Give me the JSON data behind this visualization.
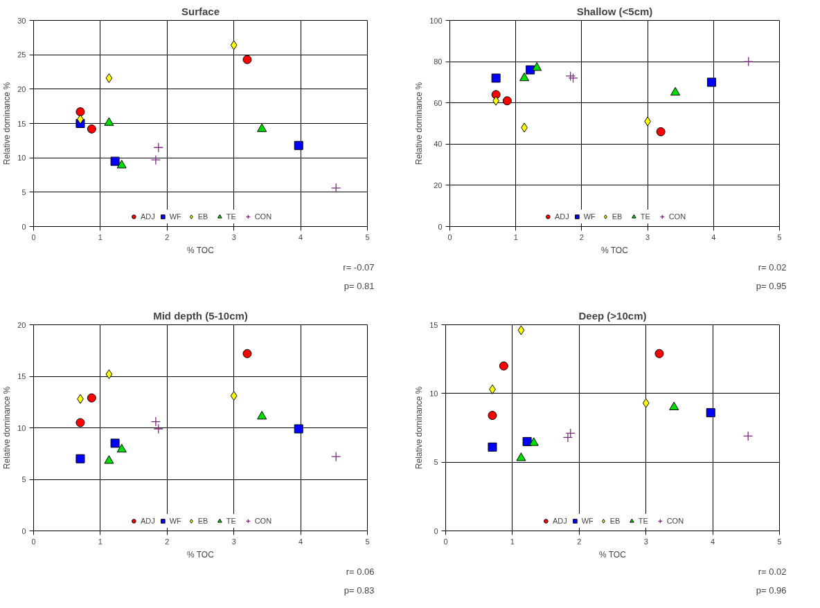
{
  "chart_data": [
    {
      "type": "scatter",
      "title": "Surface",
      "xlabel": "% TOC",
      "ylabel": "Relative dominance %",
      "xlim": [
        0,
        5
      ],
      "xticks": [
        0,
        1,
        2,
        3,
        4,
        5
      ],
      "ylim": [
        0,
        30
      ],
      "yticks": [
        0,
        5,
        10,
        15,
        20,
        25,
        30
      ],
      "grid": true,
      "legend": "bottom",
      "annotations": [
        "r= -0.07",
        "p= 0.81"
      ],
      "series": [
        {
          "name": "ADJ",
          "color": "#ff0000",
          "marker": "circle",
          "x": [
            0.7,
            0.87,
            3.2
          ],
          "values": [
            16.7,
            14.2,
            24.3
          ]
        },
        {
          "name": "WF",
          "color": "#0000ff",
          "marker": "square",
          "x": [
            0.7,
            1.22,
            3.97
          ],
          "values": [
            15.0,
            9.5,
            11.8
          ]
        },
        {
          "name": "EB",
          "color": "#ffff00",
          "marker": "diamond",
          "x": [
            0.7,
            1.13,
            3.0
          ],
          "values": [
            15.6,
            21.6,
            26.4
          ]
        },
        {
          "name": "TE",
          "color": "#00dd00",
          "marker": "triangle",
          "x": [
            1.13,
            1.32,
            3.42
          ],
          "values": [
            15.1,
            8.9,
            14.2
          ]
        },
        {
          "name": "CON",
          "color": "#7f2a7f",
          "marker": "cross",
          "x": [
            1.83,
            1.87,
            4.53
          ],
          "values": [
            9.7,
            11.5,
            5.6
          ]
        }
      ]
    },
    {
      "type": "scatter",
      "title": "Shallow (<5cm)",
      "xlabel": "% TOC",
      "ylabel": "Relative dominance %",
      "xlim": [
        0,
        5
      ],
      "xticks": [
        0,
        1,
        2,
        3,
        4,
        5
      ],
      "ylim": [
        0,
        100
      ],
      "yticks": [
        0,
        20,
        40,
        60,
        80,
        100
      ],
      "grid": true,
      "legend": "bottom",
      "annotations": [
        "r= 0.02",
        "p= 0.95"
      ],
      "series": [
        {
          "name": "ADJ",
          "color": "#ff0000",
          "marker": "circle",
          "x": [
            0.7,
            0.87,
            3.2
          ],
          "values": [
            64,
            61,
            46
          ]
        },
        {
          "name": "WF",
          "color": "#0000ff",
          "marker": "square",
          "x": [
            0.7,
            1.22,
            3.97
          ],
          "values": [
            72,
            76,
            70
          ]
        },
        {
          "name": "EB",
          "color": "#ffff00",
          "marker": "diamond",
          "x": [
            0.7,
            1.13,
            3.0
          ],
          "values": [
            61,
            48,
            51
          ]
        },
        {
          "name": "TE",
          "color": "#00dd00",
          "marker": "triangle",
          "x": [
            1.13,
            1.32,
            3.42
          ],
          "values": [
            72,
            77,
            65
          ]
        },
        {
          "name": "CON",
          "color": "#7f2a7f",
          "marker": "cross",
          "x": [
            1.83,
            1.87,
            4.53
          ],
          "values": [
            73,
            72,
            80
          ]
        }
      ]
    },
    {
      "type": "scatter",
      "title": "Mid depth (5-10cm)",
      "xlabel": "% TOC",
      "ylabel": "Relative dominance %",
      "xlim": [
        0,
        5
      ],
      "xticks": [
        0,
        1,
        2,
        3,
        4,
        5
      ],
      "ylim": [
        0,
        20
      ],
      "yticks": [
        0,
        5,
        10,
        15,
        20
      ],
      "grid": true,
      "legend": "bottom",
      "annotations": [
        "r= 0.06",
        "p= 0.83"
      ],
      "series": [
        {
          "name": "ADJ",
          "color": "#ff0000",
          "marker": "circle",
          "x": [
            0.7,
            0.87,
            3.2
          ],
          "values": [
            10.5,
            12.9,
            17.2
          ]
        },
        {
          "name": "WF",
          "color": "#0000ff",
          "marker": "square",
          "x": [
            0.7,
            1.22,
            3.97
          ],
          "values": [
            7.0,
            8.5,
            9.9
          ]
        },
        {
          "name": "EB",
          "color": "#ffff00",
          "marker": "diamond",
          "x": [
            0.7,
            1.13,
            3.0
          ],
          "values": [
            12.8,
            15.2,
            13.1
          ]
        },
        {
          "name": "TE",
          "color": "#00dd00",
          "marker": "triangle",
          "x": [
            1.13,
            1.32,
            3.42
          ],
          "values": [
            6.8,
            7.9,
            11.1
          ]
        },
        {
          "name": "CON",
          "color": "#7f2a7f",
          "marker": "cross",
          "x": [
            1.83,
            1.87,
            4.53
          ],
          "values": [
            10.6,
            9.9,
            7.2
          ]
        }
      ]
    },
    {
      "type": "scatter",
      "title": "Deep (>10cm)",
      "xlabel": "% TOC",
      "ylabel": "Relative dominance %",
      "xlim": [
        0,
        5
      ],
      "xticks": [
        0,
        1,
        2,
        3,
        4,
        5
      ],
      "ylim": [
        0,
        15
      ],
      "yticks": [
        0,
        5,
        10,
        15
      ],
      "grid": true,
      "legend": "bottom",
      "annotations": [
        "r= 0.02",
        "p= 0.96"
      ],
      "series": [
        {
          "name": "ADJ",
          "color": "#ff0000",
          "marker": "circle",
          "x": [
            0.7,
            0.87,
            3.2
          ],
          "values": [
            8.4,
            12.0,
            12.9
          ]
        },
        {
          "name": "WF",
          "color": "#0000ff",
          "marker": "square",
          "x": [
            0.7,
            1.22,
            3.97
          ],
          "values": [
            6.1,
            6.5,
            8.6
          ]
        },
        {
          "name": "EB",
          "color": "#ffff00",
          "marker": "diamond",
          "x": [
            0.7,
            1.13,
            3.0
          ],
          "values": [
            10.3,
            14.6,
            9.3
          ]
        },
        {
          "name": "TE",
          "color": "#00dd00",
          "marker": "triangle",
          "x": [
            1.13,
            1.32,
            3.42
          ],
          "values": [
            5.3,
            6.4,
            9.0
          ]
        },
        {
          "name": "CON",
          "color": "#7f2a7f",
          "marker": "cross",
          "x": [
            1.83,
            1.87,
            4.53
          ],
          "values": [
            6.8,
            7.1,
            6.9
          ]
        }
      ]
    }
  ]
}
